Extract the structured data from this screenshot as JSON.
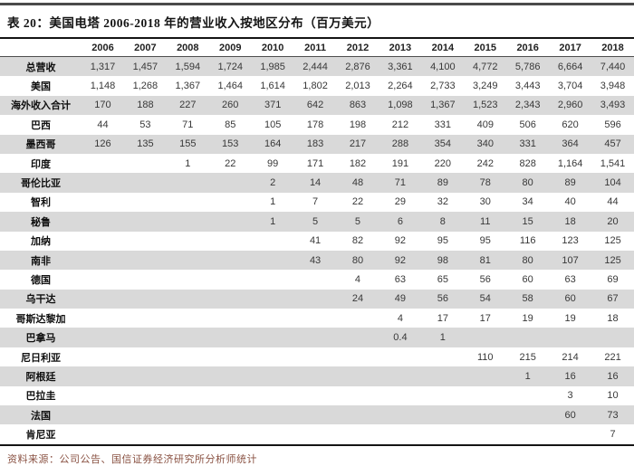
{
  "table": {
    "title": "表 20：美国电塔 2006-2018 年的营业收入按地区分布（百万美元）",
    "years": [
      "2006",
      "2007",
      "2008",
      "2009",
      "2010",
      "2011",
      "2012",
      "2013",
      "2014",
      "2015",
      "2016",
      "2017",
      "2018"
    ],
    "rows": [
      {
        "label": "总营收",
        "values": [
          "1,317",
          "1,457",
          "1,594",
          "1,724",
          "1,985",
          "2,444",
          "2,876",
          "3,361",
          "4,100",
          "4,772",
          "5,786",
          "6,664",
          "7,440"
        ]
      },
      {
        "label": "美国",
        "values": [
          "1,148",
          "1,268",
          "1,367",
          "1,464",
          "1,614",
          "1,802",
          "2,013",
          "2,264",
          "2,733",
          "3,249",
          "3,443",
          "3,704",
          "3,948"
        ]
      },
      {
        "label": "海外收入合计",
        "values": [
          "170",
          "188",
          "227",
          "260",
          "371",
          "642",
          "863",
          "1,098",
          "1,367",
          "1,523",
          "2,343",
          "2,960",
          "3,493"
        ]
      },
      {
        "label": "巴西",
        "values": [
          "44",
          "53",
          "71",
          "85",
          "105",
          "178",
          "198",
          "212",
          "331",
          "409",
          "506",
          "620",
          "596"
        ]
      },
      {
        "label": "墨西哥",
        "values": [
          "126",
          "135",
          "155",
          "153",
          "164",
          "183",
          "217",
          "288",
          "354",
          "340",
          "331",
          "364",
          "457"
        ]
      },
      {
        "label": "印度",
        "values": [
          "",
          "",
          "1",
          "22",
          "99",
          "171",
          "182",
          "191",
          "220",
          "242",
          "828",
          "1,164",
          "1,541"
        ]
      },
      {
        "label": "哥伦比亚",
        "values": [
          "",
          "",
          "",
          "",
          "2",
          "14",
          "48",
          "71",
          "89",
          "78",
          "80",
          "89",
          "104"
        ]
      },
      {
        "label": "智利",
        "values": [
          "",
          "",
          "",
          "",
          "1",
          "7",
          "22",
          "29",
          "32",
          "30",
          "34",
          "40",
          "44"
        ]
      },
      {
        "label": "秘鲁",
        "values": [
          "",
          "",
          "",
          "",
          "1",
          "5",
          "5",
          "6",
          "8",
          "11",
          "15",
          "18",
          "20"
        ]
      },
      {
        "label": "加纳",
        "values": [
          "",
          "",
          "",
          "",
          "",
          "41",
          "82",
          "92",
          "95",
          "95",
          "116",
          "123",
          "125"
        ]
      },
      {
        "label": "南非",
        "values": [
          "",
          "",
          "",
          "",
          "",
          "43",
          "80",
          "92",
          "98",
          "81",
          "80",
          "107",
          "125"
        ]
      },
      {
        "label": "德国",
        "values": [
          "",
          "",
          "",
          "",
          "",
          "",
          "4",
          "63",
          "65",
          "56",
          "60",
          "63",
          "69"
        ]
      },
      {
        "label": "乌干达",
        "values": [
          "",
          "",
          "",
          "",
          "",
          "",
          "24",
          "49",
          "56",
          "54",
          "58",
          "60",
          "67"
        ]
      },
      {
        "label": "哥斯达黎加",
        "values": [
          "",
          "",
          "",
          "",
          "",
          "",
          "",
          "4",
          "17",
          "17",
          "19",
          "19",
          "18"
        ]
      },
      {
        "label": "巴拿马",
        "values": [
          "",
          "",
          "",
          "",
          "",
          "",
          "",
          "0.4",
          "1",
          "",
          "",
          "",
          ""
        ]
      },
      {
        "label": "尼日利亚",
        "values": [
          "",
          "",
          "",
          "",
          "",
          "",
          "",
          "",
          "",
          "110",
          "215",
          "214",
          "221"
        ]
      },
      {
        "label": "阿根廷",
        "values": [
          "",
          "",
          "",
          "",
          "",
          "",
          "",
          "",
          "",
          "",
          "1",
          "16",
          "16"
        ]
      },
      {
        "label": "巴拉圭",
        "values": [
          "",
          "",
          "",
          "",
          "",
          "",
          "",
          "",
          "",
          "",
          "",
          "3",
          "10"
        ]
      },
      {
        "label": "法国",
        "values": [
          "",
          "",
          "",
          "",
          "",
          "",
          "",
          "",
          "",
          "",
          "",
          "60",
          "73"
        ]
      },
      {
        "label": "肯尼亚",
        "values": [
          "",
          "",
          "",
          "",
          "",
          "",
          "",
          "",
          "",
          "",
          "",
          "",
          "7"
        ]
      }
    ],
    "source": "资料来源：公司公告、国信证券经济研究所分析师统计"
  },
  "colors": {
    "row_shade": "#d9d9d9",
    "rule_dark": "#141414",
    "source_text": "#8a5243"
  }
}
